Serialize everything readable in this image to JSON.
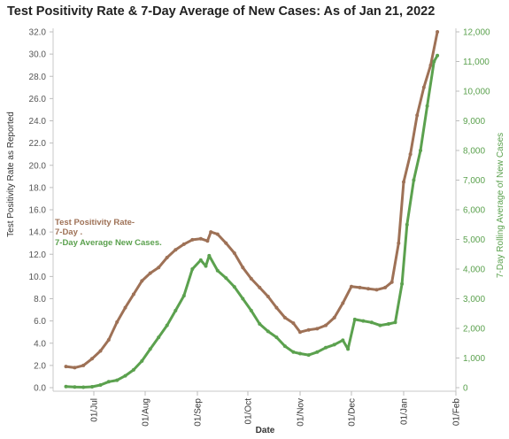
{
  "chart_data": {
    "type": "line",
    "title": "Test Positivity Rate & 7-Day Average of New Cases: As of Jan 21, 2022",
    "xlabel": "Date",
    "x_ticks": [
      "01/Jul",
      "01/Aug",
      "01/Sep",
      "01/Oct",
      "01/Nov",
      "01/Dec",
      "01/Jan",
      "01/Feb"
    ],
    "y_left": {
      "label": "Test Positivity Rate as Reported",
      "ticks": [
        "0.0",
        "2.0",
        "4.0",
        "6.0",
        "8.0",
        "10.0",
        "12.0",
        "14.0",
        "16.0",
        "18.0",
        "20.0",
        "22.0",
        "24.0",
        "26.0",
        "28.0",
        "30.0",
        "32.0"
      ],
      "range": [
        0,
        32
      ]
    },
    "y_right": {
      "label": "7-Day Rolling  Average of New Cases",
      "ticks": [
        "0",
        "1,000",
        "2,000",
        "3,000",
        "4,000",
        "5,000",
        "6,000",
        "7,000",
        "8,000",
        "9,000",
        "10,000",
        "11,000",
        "12,000"
      ],
      "range": [
        0,
        12000
      ]
    },
    "grid": false,
    "legend_placement": "left-middle (inline text annotation)",
    "annotation": {
      "line1": "Test Positivity Rate-",
      "line2": "7-Day .",
      "line3": "7-Day Average New Cases."
    },
    "colors": {
      "positivity": "#9e7156",
      "cases": "#5ba14e",
      "axis_left": "#555555",
      "axis_right": "#5ba14e"
    },
    "series": [
      {
        "name": "Test Positivity Rate-7-Day",
        "axis": "left",
        "points": [
          [
            "2021-06-15",
            1.9
          ],
          [
            "2021-06-20",
            1.8
          ],
          [
            "2021-06-25",
            2.0
          ],
          [
            "2021-06-30",
            2.6
          ],
          [
            "2021-07-05",
            3.3
          ],
          [
            "2021-07-10",
            4.3
          ],
          [
            "2021-07-15",
            5.9
          ],
          [
            "2021-07-20",
            7.2
          ],
          [
            "2021-07-25",
            8.4
          ],
          [
            "2021-07-30",
            9.6
          ],
          [
            "2021-08-04",
            10.3
          ],
          [
            "2021-08-09",
            10.8
          ],
          [
            "2021-08-14",
            11.7
          ],
          [
            "2021-08-19",
            12.4
          ],
          [
            "2021-08-24",
            12.9
          ],
          [
            "2021-08-29",
            13.3
          ],
          [
            "2021-09-03",
            13.4
          ],
          [
            "2021-09-07",
            13.2
          ],
          [
            "2021-09-09",
            14.0
          ],
          [
            "2021-09-13",
            13.8
          ],
          [
            "2021-09-18",
            13.0
          ],
          [
            "2021-09-23",
            12.1
          ],
          [
            "2021-09-28",
            10.8
          ],
          [
            "2021-10-03",
            9.8
          ],
          [
            "2021-10-08",
            9.0
          ],
          [
            "2021-10-13",
            8.2
          ],
          [
            "2021-10-18",
            7.2
          ],
          [
            "2021-10-23",
            6.3
          ],
          [
            "2021-10-28",
            5.8
          ],
          [
            "2021-11-01",
            5.0
          ],
          [
            "2021-11-06",
            5.2
          ],
          [
            "2021-11-11",
            5.3
          ],
          [
            "2021-11-16",
            5.6
          ],
          [
            "2021-11-21",
            6.3
          ],
          [
            "2021-11-26",
            7.6
          ],
          [
            "2021-12-01",
            9.1
          ],
          [
            "2021-12-06",
            9.0
          ],
          [
            "2021-12-11",
            8.9
          ],
          [
            "2021-12-16",
            8.8
          ],
          [
            "2021-12-21",
            9.0
          ],
          [
            "2021-12-25",
            9.5
          ],
          [
            "2021-12-29",
            13.0
          ],
          [
            "2022-01-01",
            18.5
          ],
          [
            "2022-01-05",
            21.0
          ],
          [
            "2022-01-09",
            24.5
          ],
          [
            "2022-01-13",
            27.0
          ],
          [
            "2022-01-17",
            29.0
          ],
          [
            "2022-01-21",
            32.0
          ]
        ]
      },
      {
        "name": "7-Day Average New Cases",
        "axis": "right",
        "points": [
          [
            "2021-06-15",
            40
          ],
          [
            "2021-06-20",
            20
          ],
          [
            "2021-06-25",
            15
          ],
          [
            "2021-06-30",
            30
          ],
          [
            "2021-07-05",
            90
          ],
          [
            "2021-07-10",
            200
          ],
          [
            "2021-07-15",
            250
          ],
          [
            "2021-07-20",
            400
          ],
          [
            "2021-07-25",
            600
          ],
          [
            "2021-07-30",
            900
          ],
          [
            "2021-08-04",
            1300
          ],
          [
            "2021-08-09",
            1700
          ],
          [
            "2021-08-14",
            2100
          ],
          [
            "2021-08-19",
            2600
          ],
          [
            "2021-08-24",
            3100
          ],
          [
            "2021-08-29",
            4000
          ],
          [
            "2021-09-03",
            4300
          ],
          [
            "2021-09-06",
            4100
          ],
          [
            "2021-09-08",
            4450
          ],
          [
            "2021-09-13",
            3950
          ],
          [
            "2021-09-18",
            3700
          ],
          [
            "2021-09-23",
            3400
          ],
          [
            "2021-09-28",
            3000
          ],
          [
            "2021-10-03",
            2600
          ],
          [
            "2021-10-08",
            2150
          ],
          [
            "2021-10-13",
            1900
          ],
          [
            "2021-10-18",
            1700
          ],
          [
            "2021-10-23",
            1400
          ],
          [
            "2021-10-28",
            1200
          ],
          [
            "2021-11-01",
            1150
          ],
          [
            "2021-11-06",
            1100
          ],
          [
            "2021-11-11",
            1200
          ],
          [
            "2021-11-16",
            1350
          ],
          [
            "2021-11-21",
            1450
          ],
          [
            "2021-11-26",
            1600
          ],
          [
            "2021-11-29",
            1300
          ],
          [
            "2021-12-03",
            2300
          ],
          [
            "2021-12-08",
            2250
          ],
          [
            "2021-12-13",
            2200
          ],
          [
            "2021-12-18",
            2100
          ],
          [
            "2021-12-23",
            2150
          ],
          [
            "2021-12-27",
            2200
          ],
          [
            "2021-12-31",
            3500
          ],
          [
            "2022-01-03",
            5500
          ],
          [
            "2022-01-07",
            7000
          ],
          [
            "2022-01-11",
            8000
          ],
          [
            "2022-01-15",
            9500
          ],
          [
            "2022-01-19",
            11000
          ],
          [
            "2022-01-21",
            11200
          ]
        ]
      }
    ]
  }
}
